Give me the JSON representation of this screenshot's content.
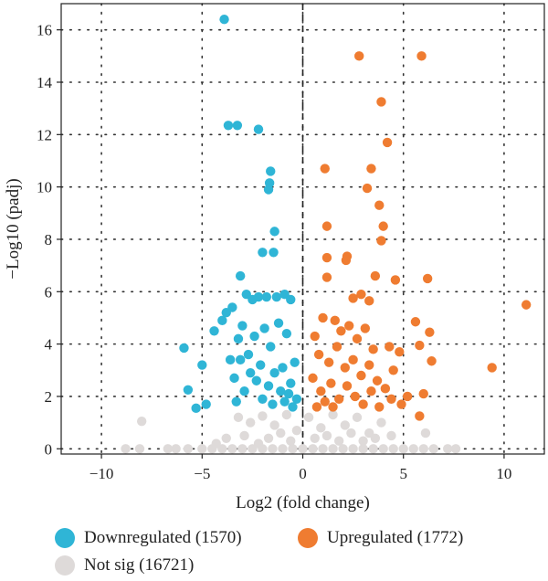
{
  "chart_data": {
    "type": "scatter",
    "title": "",
    "xlabel": "Log2 (fold change)",
    "ylabel": "−Log10 (padj)",
    "xlim": [
      -12,
      12
    ],
    "ylim": [
      -0.2,
      17
    ],
    "xticks": [
      -10,
      -5,
      0,
      5,
      10
    ],
    "yticks": [
      0,
      2,
      4,
      6,
      8,
      10,
      12,
      14,
      16
    ],
    "xtick_labels": [
      "−10",
      "−5",
      "0",
      "5",
      "10"
    ],
    "ytick_labels": [
      "0",
      "2",
      "4",
      "6",
      "8",
      "10",
      "12",
      "14",
      "16"
    ],
    "grid": "dotted",
    "center_line_x": 0,
    "series": [
      {
        "name": "Downregulated (1570)",
        "color": "#2fb5d6",
        "points": [
          [
            -3.9,
            16.4
          ],
          [
            -3.7,
            12.35
          ],
          [
            -3.25,
            12.35
          ],
          [
            -2.2,
            12.2
          ],
          [
            -1.6,
            10.6
          ],
          [
            -1.65,
            10.15
          ],
          [
            -1.7,
            9.9
          ],
          [
            -1.4,
            8.3
          ],
          [
            -2.0,
            7.5
          ],
          [
            -1.45,
            7.5
          ],
          [
            -3.1,
            6.6
          ],
          [
            -5.9,
            3.85
          ],
          [
            -5.7,
            2.25
          ],
          [
            -5.0,
            3.2
          ],
          [
            -4.8,
            1.7
          ],
          [
            -5.3,
            1.55
          ],
          [
            -4.4,
            4.5
          ],
          [
            -4.0,
            4.9
          ],
          [
            -3.8,
            5.2
          ],
          [
            -3.5,
            5.4
          ],
          [
            -2.8,
            5.9
          ],
          [
            -2.5,
            5.7
          ],
          [
            -2.2,
            5.8
          ],
          [
            -1.8,
            5.8
          ],
          [
            -1.3,
            5.8
          ],
          [
            -0.9,
            5.9
          ],
          [
            -0.6,
            5.7
          ],
          [
            -3.6,
            3.4
          ],
          [
            -3.4,
            2.7
          ],
          [
            -3.2,
            4.2
          ],
          [
            -3.0,
            4.7
          ],
          [
            -2.7,
            3.6
          ],
          [
            -2.4,
            4.3
          ],
          [
            -2.1,
            3.2
          ],
          [
            -1.9,
            4.6
          ],
          [
            -1.6,
            3.9
          ],
          [
            -1.2,
            4.8
          ],
          [
            -1.0,
            3.1
          ],
          [
            -0.8,
            4.4
          ],
          [
            -0.6,
            2.5
          ],
          [
            -0.4,
            3.3
          ],
          [
            -0.3,
            1.9
          ],
          [
            -2.9,
            2.2
          ],
          [
            -2.6,
            2.9
          ],
          [
            -2.3,
            2.6
          ],
          [
            -1.7,
            2.4
          ],
          [
            -1.4,
            2.9
          ],
          [
            -1.1,
            2.2
          ],
          [
            -0.9,
            1.8
          ],
          [
            -0.5,
            1.6
          ],
          [
            -3.3,
            1.8
          ],
          [
            -3.1,
            3.4
          ],
          [
            -2.0,
            1.9
          ],
          [
            -1.5,
            1.7
          ],
          [
            -0.7,
            2.1
          ]
        ]
      },
      {
        "name": "Upregulated (1772)",
        "color": "#ef7c31",
        "points": [
          [
            2.8,
            15.0
          ],
          [
            5.9,
            15.0
          ],
          [
            3.9,
            13.25
          ],
          [
            4.2,
            11.7
          ],
          [
            1.1,
            10.7
          ],
          [
            3.4,
            10.7
          ],
          [
            3.2,
            9.95
          ],
          [
            3.8,
            9.3
          ],
          [
            4.0,
            8.5
          ],
          [
            1.2,
            8.5
          ],
          [
            3.9,
            7.95
          ],
          [
            2.2,
            7.35
          ],
          [
            2.15,
            7.2
          ],
          [
            1.2,
            7.3
          ],
          [
            3.6,
            6.6
          ],
          [
            4.6,
            6.45
          ],
          [
            6.2,
            6.5
          ],
          [
            1.2,
            6.55
          ],
          [
            2.9,
            5.9
          ],
          [
            2.5,
            5.75
          ],
          [
            3.3,
            5.65
          ],
          [
            11.1,
            5.5
          ],
          [
            5.6,
            4.85
          ],
          [
            6.3,
            4.45
          ],
          [
            5.8,
            3.95
          ],
          [
            4.3,
            3.9
          ],
          [
            4.8,
            3.7
          ],
          [
            6.4,
            3.35
          ],
          [
            9.4,
            3.1
          ],
          [
            6.0,
            2.1
          ],
          [
            5.2,
            2.0
          ],
          [
            5.8,
            1.25
          ],
          [
            1.0,
            5.0
          ],
          [
            1.6,
            4.9
          ],
          [
            1.9,
            4.5
          ],
          [
            2.3,
            4.7
          ],
          [
            2.7,
            4.2
          ],
          [
            3.1,
            4.6
          ],
          [
            3.5,
            3.8
          ],
          [
            0.6,
            4.3
          ],
          [
            0.8,
            3.6
          ],
          [
            1.3,
            3.3
          ],
          [
            1.7,
            3.9
          ],
          [
            2.1,
            3.1
          ],
          [
            2.5,
            3.4
          ],
          [
            2.9,
            2.8
          ],
          [
            3.3,
            3.2
          ],
          [
            3.7,
            2.6
          ],
          [
            4.1,
            2.3
          ],
          [
            4.4,
            1.9
          ],
          [
            4.9,
            1.7
          ],
          [
            0.5,
            2.7
          ],
          [
            0.9,
            2.2
          ],
          [
            1.4,
            2.5
          ],
          [
            1.8,
            1.9
          ],
          [
            2.2,
            2.4
          ],
          [
            2.6,
            2.0
          ],
          [
            3.0,
            1.7
          ],
          [
            3.4,
            2.2
          ],
          [
            3.8,
            1.6
          ],
          [
            0.7,
            1.6
          ],
          [
            1.1,
            1.8
          ],
          [
            1.5,
            1.6
          ],
          [
            4.5,
            3.0
          ]
        ]
      },
      {
        "name": "Not sig (16721)",
        "color": "#dedad9",
        "points": [
          [
            -8.0,
            1.05
          ],
          [
            -8.8,
            0.0
          ],
          [
            -8.1,
            0.0
          ],
          [
            -6.7,
            0.0
          ],
          [
            -6.3,
            0.0
          ],
          [
            -5.7,
            0.0
          ],
          [
            -5.0,
            0.0
          ],
          [
            -4.5,
            0.0
          ],
          [
            -4.0,
            0.0
          ],
          [
            -3.5,
            0.0
          ],
          [
            -3.0,
            0.0
          ],
          [
            -2.5,
            0.0
          ],
          [
            -2.0,
            0.0
          ],
          [
            -1.5,
            0.0
          ],
          [
            -1.0,
            0.0
          ],
          [
            -0.5,
            0.0
          ],
          [
            0.0,
            0.0
          ],
          [
            0.5,
            0.0
          ],
          [
            1.0,
            0.0
          ],
          [
            1.5,
            0.0
          ],
          [
            2.0,
            0.0
          ],
          [
            2.5,
            0.0
          ],
          [
            3.0,
            0.0
          ],
          [
            3.5,
            0.0
          ],
          [
            4.0,
            0.0
          ],
          [
            4.5,
            0.0
          ],
          [
            5.0,
            0.0
          ],
          [
            5.5,
            0.0
          ],
          [
            6.0,
            0.0
          ],
          [
            6.5,
            0.0
          ],
          [
            7.2,
            0.0
          ],
          [
            7.6,
            0.0
          ],
          [
            6.1,
            0.6
          ],
          [
            -3.2,
            1.2
          ],
          [
            -2.6,
            1.0
          ],
          [
            -2.0,
            1.25
          ],
          [
            -1.4,
            0.9
          ],
          [
            -0.8,
            1.3
          ],
          [
            -0.3,
            0.7
          ],
          [
            0.3,
            1.2
          ],
          [
            0.9,
            0.8
          ],
          [
            1.5,
            1.3
          ],
          [
            2.1,
            0.9
          ],
          [
            2.7,
            1.2
          ],
          [
            3.3,
            0.6
          ],
          [
            3.9,
            1.0
          ],
          [
            4.4,
            0.5
          ],
          [
            -3.8,
            0.4
          ],
          [
            -2.9,
            0.5
          ],
          [
            -1.7,
            0.4
          ],
          [
            -1.1,
            0.6
          ],
          [
            -0.6,
            0.3
          ],
          [
            0.6,
            0.4
          ],
          [
            1.2,
            0.5
          ],
          [
            1.8,
            0.3
          ],
          [
            2.4,
            0.6
          ],
          [
            3.0,
            0.3
          ],
          [
            3.6,
            0.4
          ],
          [
            -4.3,
            0.2
          ],
          [
            -2.2,
            0.2
          ]
        ]
      }
    ],
    "legend": {
      "placement": "bottom",
      "items": [
        {
          "label": "Downregulated (1570)",
          "color": "#2fb5d6"
        },
        {
          "label": "Upregulated (1772)",
          "color": "#ef7c31"
        },
        {
          "label": "Not sig (16721)",
          "color": "#dedad9"
        }
      ]
    }
  }
}
